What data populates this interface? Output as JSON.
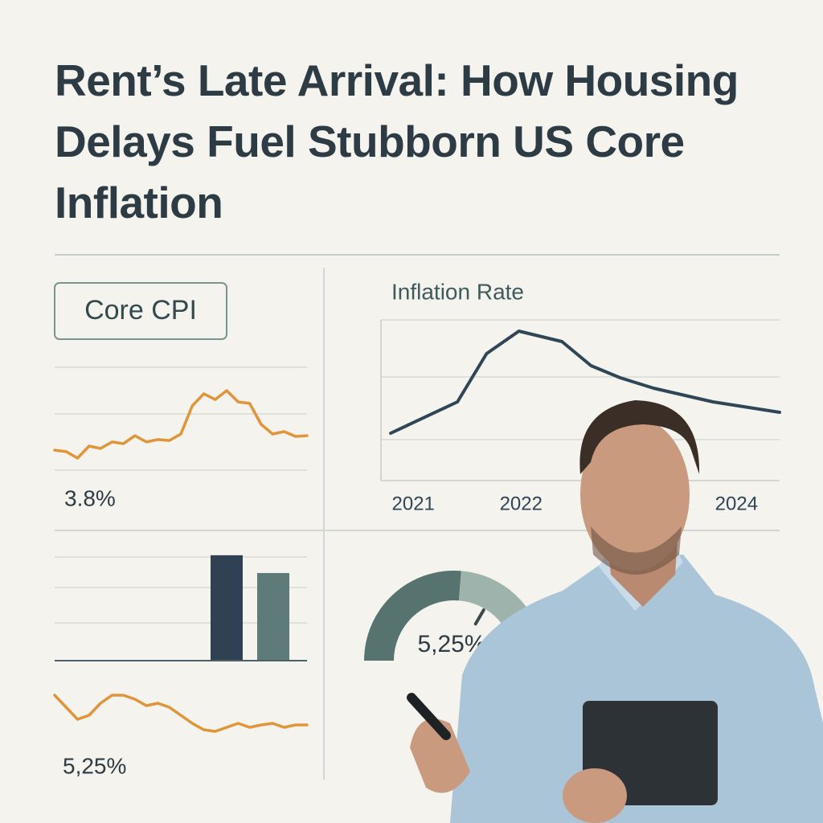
{
  "title": "Rent’s Late Arrival: How Housing Delays Fuel Stubborn US Core Inflation",
  "chart_data": [
    {
      "type": "line",
      "label": "Core CPI",
      "headline": "3.8%",
      "color": "#e0953a",
      "values": [
        1.33,
        1.27,
        1.0,
        1.5,
        1.4,
        1.67,
        1.6,
        1.93,
        1.67,
        1.77,
        1.73,
        2.0,
        3.17,
        3.67,
        3.43,
        3.8,
        3.33,
        3.27,
        2.4,
        2.0,
        2.1,
        1.9,
        1.93
      ],
      "ylim": [
        0,
        5
      ],
      "grid": true
    },
    {
      "type": "line",
      "title": "Inflation Rate",
      "color": "#2f4656",
      "x": [
        2020.79,
        2021.41,
        2021.68,
        2021.98,
        2022.38,
        2022.65,
        2022.92,
        2023.23,
        2023.78,
        2024.4
      ],
      "values": [
        2.95,
        4.9,
        7.9,
        9.3,
        8.65,
        7.15,
        6.4,
        5.75,
        4.9,
        4.25
      ],
      "xlim": [
        2020.7,
        2024.4
      ],
      "xticks": [
        2021,
        2022,
        2024
      ],
      "ylim": [
        0,
        10
      ],
      "grid": true
    },
    {
      "type": "bar",
      "categories": [
        null,
        null
      ],
      "values": [
        6.1,
        5.07
      ],
      "colors": [
        "#2f4152",
        "#5f7b79"
      ],
      "ylim": [
        0,
        8
      ],
      "grid": true
    },
    {
      "type": "gauge",
      "values": [
        5.25
      ],
      "value_labels": [
        "5,25%"
      ],
      "range": [
        0,
        10
      ],
      "colors": [
        "#567370",
        "#9fb3ad"
      ]
    },
    {
      "type": "line",
      "headline": "5,25%",
      "color": "#e0953a",
      "values": [
        3.75,
        3.0,
        2.25,
        2.5,
        3.25,
        3.75,
        3.75,
        3.5,
        3.1,
        3.25,
        3.0,
        2.5,
        2.0,
        1.6,
        1.5,
        1.75,
        2.0,
        1.75,
        1.9,
        2.0,
        1.75,
        1.9,
        1.9
      ],
      "ylim": [
        0,
        5
      ]
    }
  ]
}
